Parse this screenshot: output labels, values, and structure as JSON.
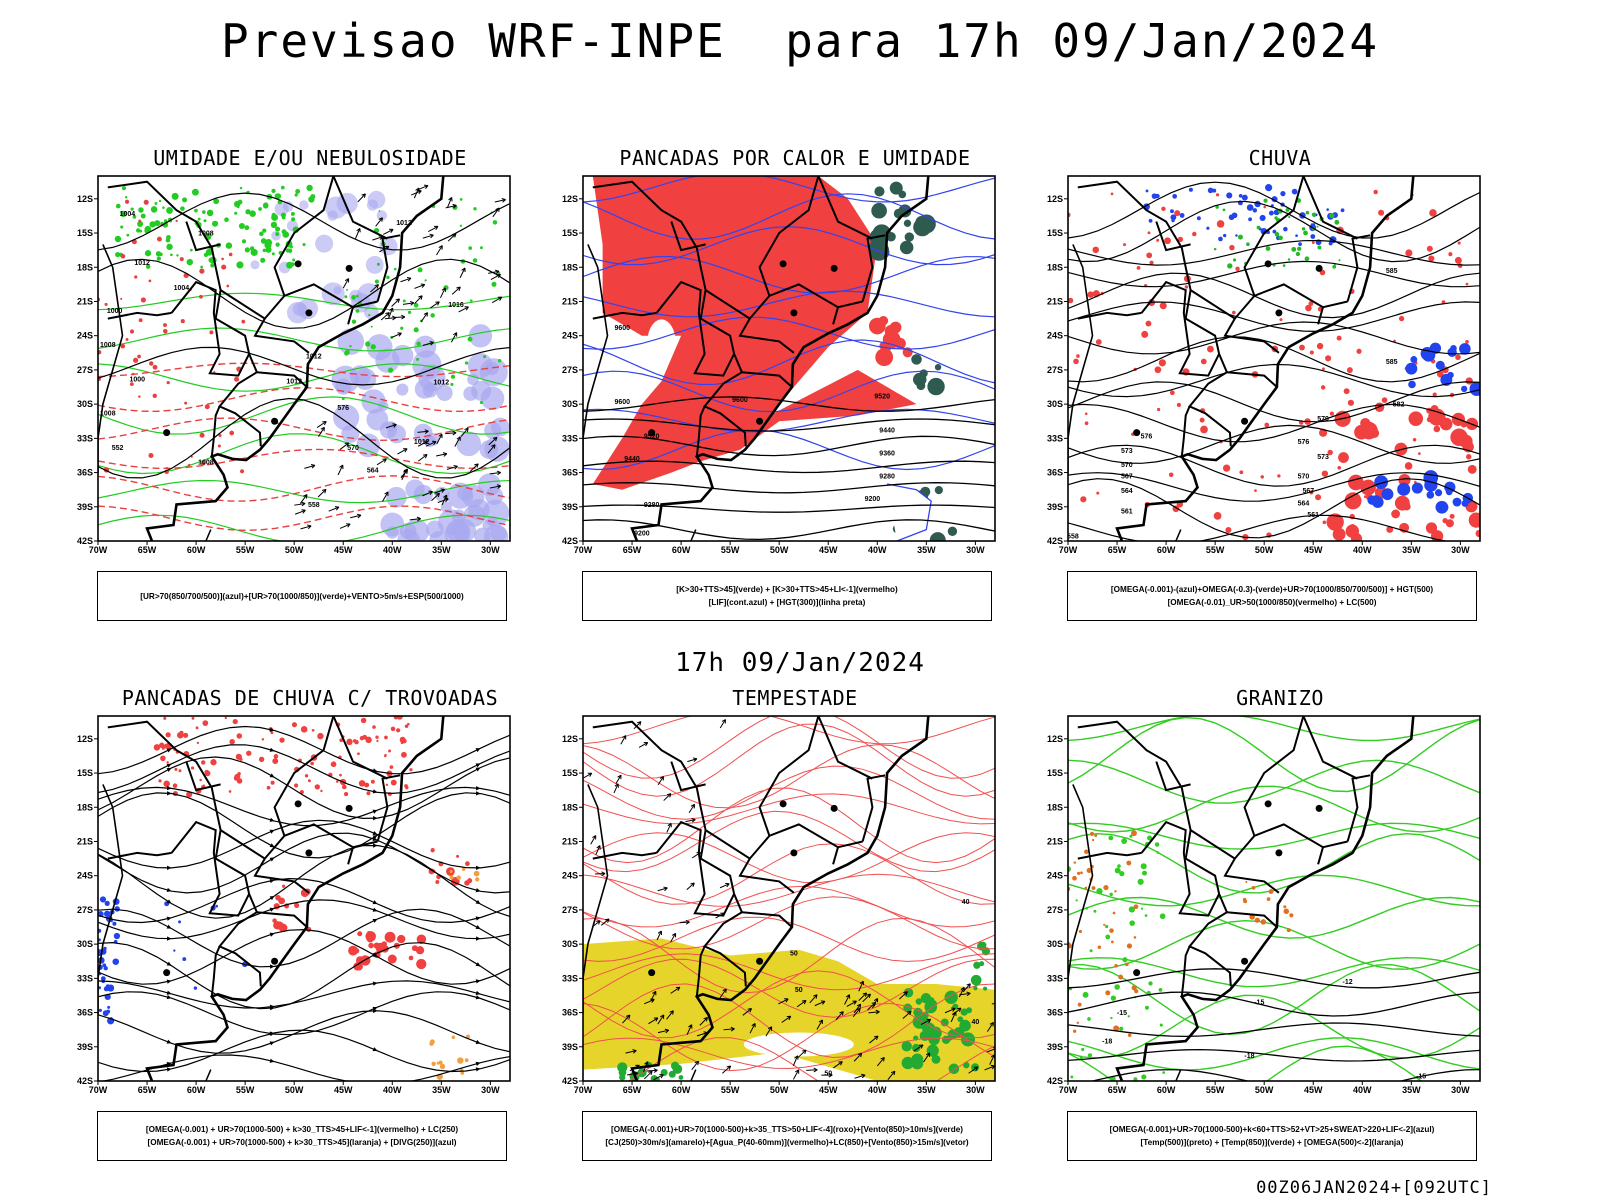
{
  "header": {
    "title": "Previsao WRF-INPE  para 17h 09/Jan/2024",
    "mid_date": "17h 09/Jan/2024",
    "footer": "00Z06JAN2024+[092UTC]"
  },
  "chart_data": [
    {
      "type": "map",
      "panel_id": "umidade",
      "title": "UMIDADE E/OU NEBULOSIDADE",
      "x_ticks": [
        "70W",
        "65W",
        "60W",
        "55W",
        "50W",
        "45W",
        "40W",
        "35W",
        "30W"
      ],
      "y_ticks": [
        "12S",
        "15S",
        "18S",
        "21S",
        "24S",
        "27S",
        "30S",
        "33S",
        "36S",
        "39S",
        "42S"
      ],
      "legend_lines": [
        "[UR>70(850/700/500)](azul)+[UR>70(1000/850)](verde)+VENTO>5m/s+ESP(500/1000)"
      ],
      "contour_labels": [
        "1012",
        "1004",
        "1008",
        "1012",
        "1004",
        "1000",
        "1016",
        "1008",
        "1012",
        "1012",
        "1000",
        "1008",
        "1012",
        "576",
        "570",
        "564",
        "558",
        "552",
        "1008",
        "1012"
      ],
      "colors": {
        "fill_blue": "#a8a8f0",
        "line_green": "#22cc22",
        "line_red": "#e84040",
        "line_black": "#000000"
      }
    },
    {
      "type": "map",
      "panel_id": "pancadas_calor",
      "title": "PANCADAS POR CALOR E UMIDADE",
      "x_ticks": [
        "70W",
        "65W",
        "60W",
        "55W",
        "50W",
        "45W",
        "40W",
        "35W",
        "30W"
      ],
      "y_ticks": [
        "12S",
        "15S",
        "18S",
        "21S",
        "24S",
        "27S",
        "30S",
        "33S",
        "36S",
        "39S",
        "42S"
      ],
      "legend_lines": [
        "[K>30+TTS>45](verde) + [K>30+TTS>45+LI<-1](vermelho)",
        "[LIF](cont.azul) + [HGT(300)](linha preta)"
      ],
      "contour_labels": [
        "9600",
        "9520",
        "9440",
        "9360",
        "9280",
        "9200",
        "9600",
        "9520",
        "9440",
        "9280",
        "9200",
        "9600"
      ],
      "colors": {
        "fill_red": "#f04040",
        "fill_darkgreen": "#2f5a50",
        "line_blue": "#3344ee",
        "line_black": "#000000"
      }
    },
    {
      "type": "map",
      "panel_id": "chuva",
      "title": "CHUVA",
      "x_ticks": [
        "70W",
        "65W",
        "60W",
        "55W",
        "50W",
        "45W",
        "40W",
        "35W",
        "30W"
      ],
      "y_ticks": [
        "12S",
        "15S",
        "18S",
        "21S",
        "24S",
        "27S",
        "30S",
        "33S",
        "36S",
        "39S",
        "42S"
      ],
      "legend_lines": [
        "[OMEGA(-0.001)-(azul)+OMEGA(-0.3)-(verde)+UR>70(1000/850/700/500)] + HGT(500)",
        "[OMEGA(-0.01)_UR>50(1000/850)(vermelho) + LC(500)"
      ],
      "contour_labels": [
        "585",
        "585",
        "582",
        "579",
        "576",
        "573",
        "570",
        "567",
        "564",
        "561",
        "558",
        "576",
        "573",
        "570",
        "567",
        "564",
        "561"
      ],
      "colors": {
        "fill_red": "#f04040",
        "fill_blue": "#2244ee",
        "fill_green": "#22bb22",
        "line_black": "#000000"
      }
    },
    {
      "type": "map",
      "panel_id": "pancadas_trovoadas",
      "title": "PANCADAS DE CHUVA C/ TROVOADAS",
      "x_ticks": [
        "70W",
        "65W",
        "60W",
        "55W",
        "50W",
        "45W",
        "40W",
        "35W",
        "30W"
      ],
      "y_ticks": [
        "12S",
        "15S",
        "18S",
        "21S",
        "24S",
        "27S",
        "30S",
        "33S",
        "36S",
        "39S",
        "42S"
      ],
      "legend_lines": [
        "[OMEGA(-0.001) + UR>70(1000-500) + k>30_TTS>45+LIF<-1](vermelho) + LC(250)",
        "[OMEGA(-0.001) + UR>70(1000-500) + k>30_TTS>45](laranja) + [DIVG(250)](azul)"
      ],
      "contour_labels": [],
      "colors": {
        "fill_red": "#f04040",
        "fill_blue": "#2244ee",
        "fill_orange": "#f0a040",
        "line_black": "#000000"
      }
    },
    {
      "type": "map",
      "panel_id": "tempestade",
      "title": "TEMPESTADE",
      "x_ticks": [
        "70W",
        "65W",
        "60W",
        "55W",
        "50W",
        "45W",
        "40W",
        "35W",
        "30W"
      ],
      "y_ticks": [
        "12S",
        "15S",
        "18S",
        "21S",
        "24S",
        "27S",
        "30S",
        "33S",
        "36S",
        "39S",
        "42S"
      ],
      "legend_lines": [
        "[OMEGA(-0.001)+UR>70(1000-500)+k>35_TTS>50+LIF<-4](roxo)+[Vento(850)>10m/s](verde)",
        "[CJ(250)>30m/s](amarelo)+[Agua_P(40-60mm)](vermelho)+LC(850)+[Vento(850)>15m/s](vetor)"
      ],
      "contour_labels": [
        "50",
        "50",
        "40",
        "50",
        "40"
      ],
      "colors": {
        "fill_yellow": "#e6d42a",
        "fill_green": "#22aa33",
        "line_red": "#f05050",
        "line_black": "#000000"
      }
    },
    {
      "type": "map",
      "panel_id": "granizo",
      "title": "GRANIZO",
      "x_ticks": [
        "70W",
        "65W",
        "60W",
        "55W",
        "50W",
        "45W",
        "40W",
        "35W",
        "30W"
      ],
      "y_ticks": [
        "12S",
        "15S",
        "18S",
        "21S",
        "24S",
        "27S",
        "30S",
        "33S",
        "36S",
        "39S",
        "42S"
      ],
      "legend_lines": [
        "[OMEGA(-0.001)+UR>70(1000-500)+k<60+TTS>52+VT>25+SWEAT>220+LIF<-2](azul)",
        "[Temp(500)](preto) + [Temp(850)](verde) + [OMEGA(500)<-2](laranja)"
      ],
      "contour_labels": [
        "-12",
        "-15",
        "-15",
        "-18",
        "-18",
        "-15"
      ],
      "colors": {
        "line_green": "#33cc22",
        "line_black": "#000000",
        "fill_orange": "#e07020"
      }
    }
  ]
}
